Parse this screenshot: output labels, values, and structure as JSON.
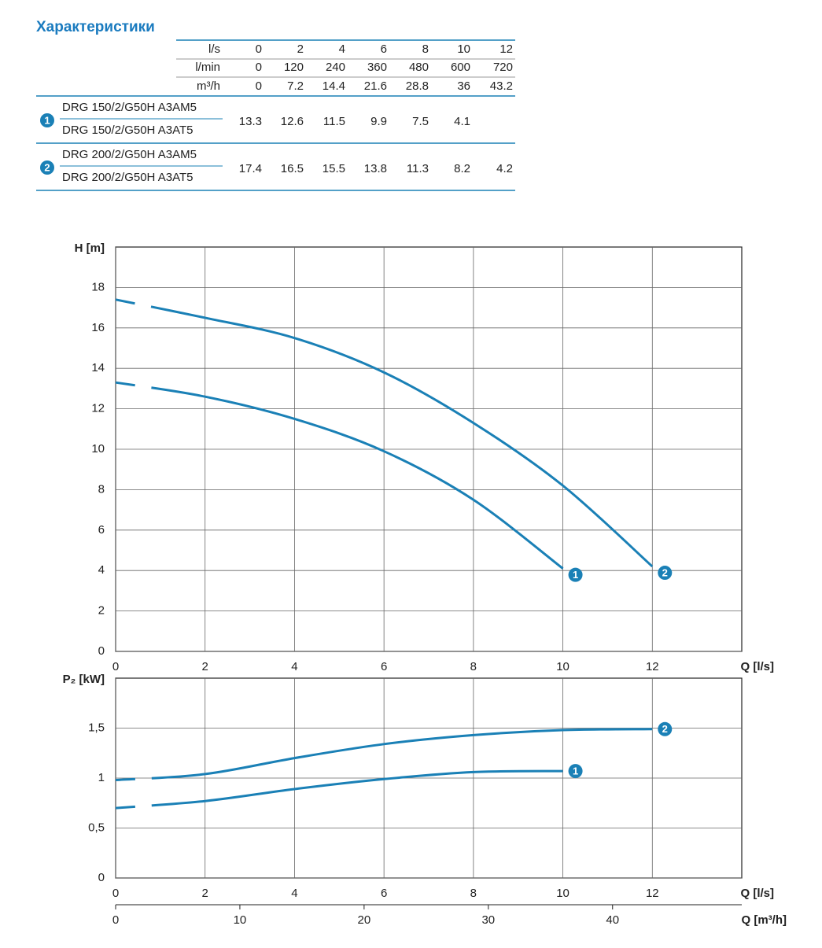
{
  "title": "Характеристики",
  "table": {
    "header_rows": [
      {
        "unit": "l/s",
        "values": [
          0,
          2,
          4,
          6,
          8,
          10,
          12
        ]
      },
      {
        "unit": "l/min",
        "values": [
          0,
          120,
          240,
          360,
          480,
          600,
          720
        ]
      },
      {
        "unit": "m³/h",
        "values": [
          0,
          7.2,
          14.4,
          21.6,
          28.8,
          36,
          43.2
        ]
      }
    ],
    "groups": [
      {
        "marker": "1",
        "models": [
          "DRG 150/2/G50H A3AM5",
          "DRG 150/2/G50H A3AT5"
        ],
        "values": [
          13.3,
          12.6,
          11.5,
          9.9,
          7.5,
          4.1
        ]
      },
      {
        "marker": "2",
        "models": [
          "DRG 200/2/G50H A3AM5",
          "DRG 200/2/G50H A3AT5"
        ],
        "values": [
          17.4,
          16.5,
          15.5,
          13.8,
          11.3,
          8.2,
          4.2
        ]
      }
    ]
  },
  "chart_data": [
    {
      "type": "line",
      "y_label": "H [m]",
      "x_label": "Q [l/s]",
      "xlim": [
        0,
        14
      ],
      "xticks": [
        0,
        2,
        4,
        6,
        8,
        10,
        12
      ],
      "ylim": [
        0,
        20
      ],
      "yticks": [
        0,
        2,
        4,
        6,
        8,
        10,
        12,
        14,
        16,
        18
      ],
      "grid": true,
      "series": [
        {
          "name": "1",
          "color": "#1a80b6",
          "x": [
            0,
            2,
            4,
            6,
            8,
            10
          ],
          "values": [
            13.3,
            12.6,
            11.5,
            9.9,
            7.5,
            4.1
          ]
        },
        {
          "name": "2",
          "color": "#1a80b6",
          "x": [
            0,
            2,
            4,
            6,
            8,
            10,
            12
          ],
          "values": [
            17.4,
            16.5,
            15.5,
            13.8,
            11.3,
            8.2,
            4.2
          ]
        }
      ]
    },
    {
      "type": "line",
      "y_label": "P₂ [kW]",
      "x_label": "Q [l/s]",
      "xlim": [
        0,
        14
      ],
      "xticks": [
        0,
        2,
        4,
        6,
        8,
        10,
        12
      ],
      "ylim": [
        0,
        2
      ],
      "yticks": [
        0,
        {
          "value": 0.5,
          "label": "0,5"
        },
        1,
        {
          "value": 1.5,
          "label": "1,5"
        }
      ],
      "grid": true,
      "x2_label": "Q [m³/h]",
      "x2lim": [
        0,
        50.4
      ],
      "x2ticks": [
        0,
        10,
        20,
        30,
        40
      ],
      "series": [
        {
          "name": "1",
          "color": "#1a80b6",
          "x": [
            0,
            2,
            4,
            6,
            8,
            10
          ],
          "values": [
            0.7,
            0.77,
            0.89,
            0.99,
            1.06,
            1.07
          ]
        },
        {
          "name": "2",
          "color": "#1a80b6",
          "x": [
            0,
            2,
            4,
            6,
            8,
            10,
            12
          ],
          "values": [
            0.98,
            1.04,
            1.2,
            1.34,
            1.43,
            1.48,
            1.49
          ]
        }
      ]
    }
  ]
}
